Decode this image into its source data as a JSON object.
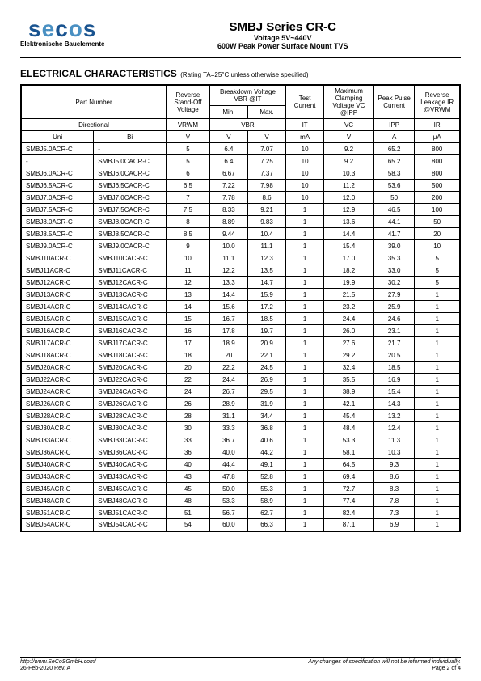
{
  "header": {
    "logo_main": "secos",
    "logo_tagline": "Elektronische Bauelemente",
    "title": "SMBJ Series CR-C",
    "subtitle1": "Voltage 5V~440V",
    "subtitle2": "600W Peak Power Surface Mount TVS"
  },
  "section": {
    "title": "ELECTRICAL CHARACTERISTICS",
    "note": "(Rating TA=25°C unless otherwise specified)"
  },
  "table": {
    "headers": {
      "part_number": "Part Number",
      "reverse_standoff": "Reverse Stand-Off Voltage",
      "breakdown": "Breakdown Voltage VBR @IT",
      "min": "Min.",
      "max": "Max.",
      "test_current": "Test Current",
      "max_clamp": "Maximum Clamping Voltage VC @IPP",
      "peak_pulse": "Peak Pulse Current",
      "reverse_leak": "Reverse Leakage IR @VRWM",
      "directional": "Directional",
      "vrwm": "VRWM",
      "vbr": "VBR",
      "it": "IT",
      "vc": "VC",
      "ipp": "IPP",
      "ir": "IR",
      "uni": "Uni",
      "bi": "Bi",
      "v": "V",
      "ma": "mA",
      "a": "A",
      "ua": "μA"
    },
    "rows": [
      {
        "uni": "SMBJ5.0ACR-C",
        "bi": "-",
        "vrwm": "5",
        "vbr_min": "6.4",
        "vbr_max": "7.07",
        "it": "10",
        "vc": "9.2",
        "ipp": "65.2",
        "ir": "800"
      },
      {
        "uni": "-",
        "bi": "SMBJ5.0CACR-C",
        "vrwm": "5",
        "vbr_min": "6.4",
        "vbr_max": "7.25",
        "it": "10",
        "vc": "9.2",
        "ipp": "65.2",
        "ir": "800"
      },
      {
        "uni": "SMBJ6.0ACR-C",
        "bi": "SMBJ6.0CACR-C",
        "vrwm": "6",
        "vbr_min": "6.67",
        "vbr_max": "7.37",
        "it": "10",
        "vc": "10.3",
        "ipp": "58.3",
        "ir": "800"
      },
      {
        "uni": "SMBJ6.5ACR-C",
        "bi": "SMBJ6.5CACR-C",
        "vrwm": "6.5",
        "vbr_min": "7.22",
        "vbr_max": "7.98",
        "it": "10",
        "vc": "11.2",
        "ipp": "53.6",
        "ir": "500"
      },
      {
        "uni": "SMBJ7.0ACR-C",
        "bi": "SMBJ7.0CACR-C",
        "vrwm": "7",
        "vbr_min": "7.78",
        "vbr_max": "8.6",
        "it": "10",
        "vc": "12.0",
        "ipp": "50",
        "ir": "200"
      },
      {
        "uni": "SMBJ7.5ACR-C",
        "bi": "SMBJ7.5CACR-C",
        "vrwm": "7.5",
        "vbr_min": "8.33",
        "vbr_max": "9.21",
        "it": "1",
        "vc": "12.9",
        "ipp": "46.5",
        "ir": "100"
      },
      {
        "uni": "SMBJ8.0ACR-C",
        "bi": "SMBJ8.0CACR-C",
        "vrwm": "8",
        "vbr_min": "8.89",
        "vbr_max": "9.83",
        "it": "1",
        "vc": "13.6",
        "ipp": "44.1",
        "ir": "50"
      },
      {
        "uni": "SMBJ8.5ACR-C",
        "bi": "SMBJ8.5CACR-C",
        "vrwm": "8.5",
        "vbr_min": "9.44",
        "vbr_max": "10.4",
        "it": "1",
        "vc": "14.4",
        "ipp": "41.7",
        "ir": "20"
      },
      {
        "uni": "SMBJ9.0ACR-C",
        "bi": "SMBJ9.0CACR-C",
        "vrwm": "9",
        "vbr_min": "10.0",
        "vbr_max": "11.1",
        "it": "1",
        "vc": "15.4",
        "ipp": "39.0",
        "ir": "10"
      },
      {
        "uni": "SMBJ10ACR-C",
        "bi": "SMBJ10CACR-C",
        "vrwm": "10",
        "vbr_min": "11.1",
        "vbr_max": "12.3",
        "it": "1",
        "vc": "17.0",
        "ipp": "35.3",
        "ir": "5"
      },
      {
        "uni": "SMBJ11ACR-C",
        "bi": "SMBJ11CACR-C",
        "vrwm": "11",
        "vbr_min": "12.2",
        "vbr_max": "13.5",
        "it": "1",
        "vc": "18.2",
        "ipp": "33.0",
        "ir": "5"
      },
      {
        "uni": "SMBJ12ACR-C",
        "bi": "SMBJ12CACR-C",
        "vrwm": "12",
        "vbr_min": "13.3",
        "vbr_max": "14.7",
        "it": "1",
        "vc": "19.9",
        "ipp": "30.2",
        "ir": "5"
      },
      {
        "uni": "SMBJ13ACR-C",
        "bi": "SMBJ13CACR-C",
        "vrwm": "13",
        "vbr_min": "14.4",
        "vbr_max": "15.9",
        "it": "1",
        "vc": "21.5",
        "ipp": "27.9",
        "ir": "1"
      },
      {
        "uni": "SMBJ14ACR-C",
        "bi": "SMBJ14CACR-C",
        "vrwm": "14",
        "vbr_min": "15.6",
        "vbr_max": "17.2",
        "it": "1",
        "vc": "23.2",
        "ipp": "25.9",
        "ir": "1"
      },
      {
        "uni": "SMBJ15ACR-C",
        "bi": "SMBJ15CACR-C",
        "vrwm": "15",
        "vbr_min": "16.7",
        "vbr_max": "18.5",
        "it": "1",
        "vc": "24.4",
        "ipp": "24.6",
        "ir": "1"
      },
      {
        "uni": "SMBJ16ACR-C",
        "bi": "SMBJ16CACR-C",
        "vrwm": "16",
        "vbr_min": "17.8",
        "vbr_max": "19.7",
        "it": "1",
        "vc": "26.0",
        "ipp": "23.1",
        "ir": "1"
      },
      {
        "uni": "SMBJ17ACR-C",
        "bi": "SMBJ17CACR-C",
        "vrwm": "17",
        "vbr_min": "18.9",
        "vbr_max": "20.9",
        "it": "1",
        "vc": "27.6",
        "ipp": "21.7",
        "ir": "1"
      },
      {
        "uni": "SMBJ18ACR-C",
        "bi": "SMBJ18CACR-C",
        "vrwm": "18",
        "vbr_min": "20",
        "vbr_max": "22.1",
        "it": "1",
        "vc": "29.2",
        "ipp": "20.5",
        "ir": "1"
      },
      {
        "uni": "SMBJ20ACR-C",
        "bi": "SMBJ20CACR-C",
        "vrwm": "20",
        "vbr_min": "22.2",
        "vbr_max": "24.5",
        "it": "1",
        "vc": "32.4",
        "ipp": "18.5",
        "ir": "1"
      },
      {
        "uni": "SMBJ22ACR-C",
        "bi": "SMBJ22CACR-C",
        "vrwm": "22",
        "vbr_min": "24.4",
        "vbr_max": "26.9",
        "it": "1",
        "vc": "35.5",
        "ipp": "16.9",
        "ir": "1"
      },
      {
        "uni": "SMBJ24ACR-C",
        "bi": "SMBJ24CACR-C",
        "vrwm": "24",
        "vbr_min": "26.7",
        "vbr_max": "29.5",
        "it": "1",
        "vc": "38.9",
        "ipp": "15.4",
        "ir": "1"
      },
      {
        "uni": "SMBJ26ACR-C",
        "bi": "SMBJ26CACR-C",
        "vrwm": "26",
        "vbr_min": "28.9",
        "vbr_max": "31.9",
        "it": "1",
        "vc": "42.1",
        "ipp": "14.3",
        "ir": "1"
      },
      {
        "uni": "SMBJ28ACR-C",
        "bi": "SMBJ28CACR-C",
        "vrwm": "28",
        "vbr_min": "31.1",
        "vbr_max": "34.4",
        "it": "1",
        "vc": "45.4",
        "ipp": "13.2",
        "ir": "1"
      },
      {
        "uni": "SMBJ30ACR-C",
        "bi": "SMBJ30CACR-C",
        "vrwm": "30",
        "vbr_min": "33.3",
        "vbr_max": "36.8",
        "it": "1",
        "vc": "48.4",
        "ipp": "12.4",
        "ir": "1"
      },
      {
        "uni": "SMBJ33ACR-C",
        "bi": "SMBJ33CACR-C",
        "vrwm": "33",
        "vbr_min": "36.7",
        "vbr_max": "40.6",
        "it": "1",
        "vc": "53.3",
        "ipp": "11.3",
        "ir": "1"
      },
      {
        "uni": "SMBJ36ACR-C",
        "bi": "SMBJ36CACR-C",
        "vrwm": "36",
        "vbr_min": "40.0",
        "vbr_max": "44.2",
        "it": "1",
        "vc": "58.1",
        "ipp": "10.3",
        "ir": "1"
      },
      {
        "uni": "SMBJ40ACR-C",
        "bi": "SMBJ40CACR-C",
        "vrwm": "40",
        "vbr_min": "44.4",
        "vbr_max": "49.1",
        "it": "1",
        "vc": "64.5",
        "ipp": "9.3",
        "ir": "1"
      },
      {
        "uni": "SMBJ43ACR-C",
        "bi": "SMBJ43CACR-C",
        "vrwm": "43",
        "vbr_min": "47.8",
        "vbr_max": "52.8",
        "it": "1",
        "vc": "69.4",
        "ipp": "8.6",
        "ir": "1"
      },
      {
        "uni": "SMBJ45ACR-C",
        "bi": "SMBJ45CACR-C",
        "vrwm": "45",
        "vbr_min": "50.0",
        "vbr_max": "55.3",
        "it": "1",
        "vc": "72.7",
        "ipp": "8.3",
        "ir": "1"
      },
      {
        "uni": "SMBJ48ACR-C",
        "bi": "SMBJ48CACR-C",
        "vrwm": "48",
        "vbr_min": "53.3",
        "vbr_max": "58.9",
        "it": "1",
        "vc": "77.4",
        "ipp": "7.8",
        "ir": "1"
      },
      {
        "uni": "SMBJ51ACR-C",
        "bi": "SMBJ51CACR-C",
        "vrwm": "51",
        "vbr_min": "56.7",
        "vbr_max": "62.7",
        "it": "1",
        "vc": "82.4",
        "ipp": "7.3",
        "ir": "1"
      },
      {
        "uni": "SMBJ54ACR-C",
        "bi": "SMBJ54CACR-C",
        "vrwm": "54",
        "vbr_min": "60.0",
        "vbr_max": "66.3",
        "it": "1",
        "vc": "87.1",
        "ipp": "6.9",
        "ir": "1"
      }
    ]
  },
  "footer": {
    "url": "http://www.SeCoSGmbH.com/",
    "disclaimer": "Any changes of specification will not be informed individually.",
    "date": "26-Feb-2020 Rev. A",
    "page": "Page 2 of 4"
  }
}
